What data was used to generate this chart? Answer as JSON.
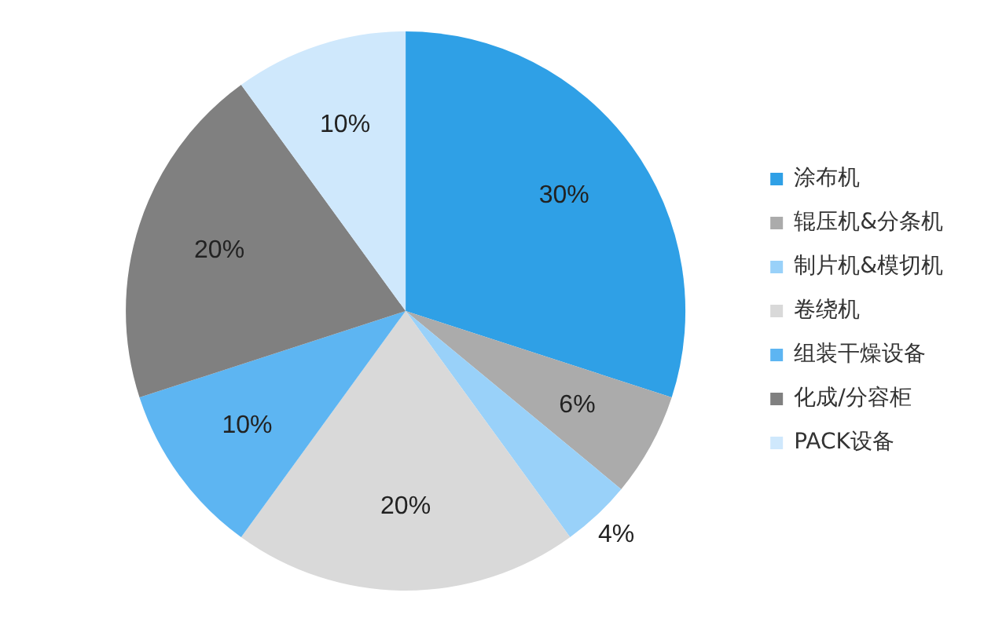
{
  "chart_data": {
    "type": "pie",
    "categories": [
      "涂布机",
      "辊压机&分条机",
      "制片机&模切机",
      "卷绕机",
      "组装干燥设备",
      "化成/分容柜",
      "PACK设备"
    ],
    "values": [
      30,
      6,
      4,
      20,
      10,
      20,
      10
    ],
    "colors": [
      "#2fa0e6",
      "#ababab",
      "#99d1f9",
      "#d9d9d9",
      "#5db5f2",
      "#808080",
      "#cfe8fc"
    ],
    "value_labels": [
      "30%",
      "6%",
      "4%",
      "20%",
      "10%",
      "20%",
      "10%"
    ],
    "legend": "right"
  }
}
